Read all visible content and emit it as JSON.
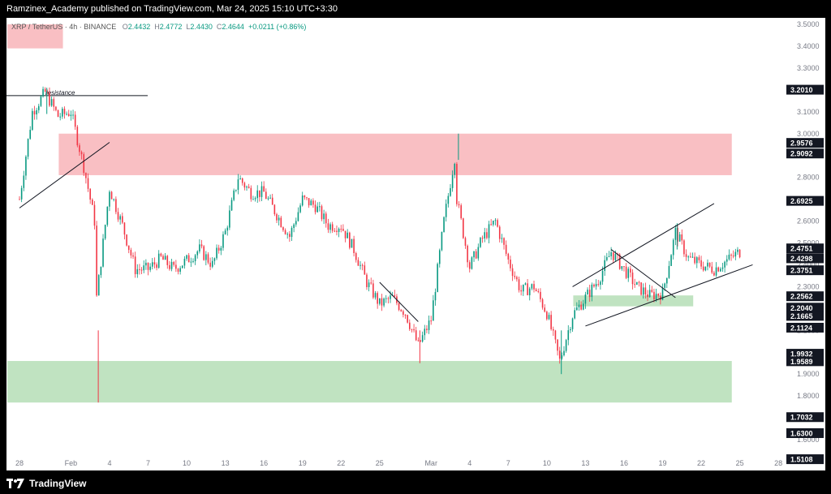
{
  "header": {
    "publisher_text": "Ramzinex_Academy published on TradingView.com, Mar 24, 2025 15:10 UTC+3:30"
  },
  "legend": {
    "symbol": "XRP / TetherUS · 4h · BINANCE",
    "o_label": "O",
    "o_value": "2.4432",
    "h_label": "H",
    "h_value": "2.4772",
    "l_label": "L",
    "l_value": "2.4430",
    "c_label": "C",
    "c_value": "2.4644",
    "change": "+0.0211 (+0.86%)"
  },
  "footer": {
    "brand": "TradingView"
  },
  "colors": {
    "up": "#089981",
    "down": "#f23645",
    "supply_zone": "#f8b4b9",
    "demand_zone": "#b5deb6",
    "background": "#ffffff",
    "chrome": "#000000"
  },
  "chart_data": {
    "type": "candlestick",
    "symbol": "XRP / TetherUS",
    "interval": "4h",
    "exchange": "BINANCE",
    "x_range": [
      "Jan 28",
      "Mar 28"
    ],
    "ylim": [
      1.5,
      3.5
    ],
    "y_ticks": [
      "3.5000",
      "3.4000",
      "3.3000",
      "3.2000",
      "3.1000",
      "3.0000",
      "2.9000",
      "2.8000",
      "2.7000",
      "2.6000",
      "2.5000",
      "2.4000",
      "2.3000",
      "2.2000",
      "2.1000",
      "2.0000",
      "1.9000",
      "1.8000",
      "1.7000",
      "1.6000",
      "1.5000"
    ],
    "x_ticks": [
      "28",
      "Feb",
      "4",
      "7",
      "10",
      "13",
      "16",
      "19",
      "22",
      "25",
      "Mar",
      "4",
      "7",
      "10",
      "13",
      "16",
      "19",
      "22",
      "25",
      "28"
    ],
    "price_labels": [
      "3.2010",
      "2.9576",
      "2.9092",
      "2.6925",
      "2.4751",
      "2.4298",
      "2.3751",
      "2.2562",
      "2.2040",
      "2.1665",
      "2.1124",
      "1.9932",
      "1.9589",
      "1.7032",
      "1.6300",
      "1.5108"
    ],
    "annotations": [
      {
        "text": "resistance",
        "price": 3.2
      }
    ],
    "zones": [
      {
        "type": "supply",
        "from": "Jan 28",
        "to": "Jan 31",
        "low": 3.39,
        "high": 3.5
      },
      {
        "type": "supply",
        "from": "Feb 1",
        "to": "Mar 24",
        "low": 2.81,
        "high": 3.0
      },
      {
        "type": "demand",
        "from": "Jan 28",
        "to": "Mar 24",
        "low": 1.77,
        "high": 1.96
      },
      {
        "type": "demand",
        "from": "Mar 13",
        "to": "Mar 21",
        "low": 2.21,
        "high": 2.26
      }
    ],
    "trendlines": [
      {
        "from": {
          "t": "Jan 28",
          "p": 2.66
        },
        "to": {
          "t": "Feb 4",
          "p": 2.96
        }
      },
      {
        "from": {
          "t": "Feb 25",
          "p": 2.32
        },
        "to": {
          "t": "Feb 28",
          "p": 2.14
        }
      },
      {
        "from": {
          "t": "Mar 12",
          "p": 2.3
        },
        "to": {
          "t": "Mar 23",
          "p": 2.68
        }
      },
      {
        "from": {
          "t": "Mar 13",
          "p": 2.12
        },
        "to": {
          "t": "Mar 26",
          "p": 2.4
        }
      },
      {
        "from": {
          "t": "Mar 15",
          "p": 2.47
        },
        "to": {
          "t": "Mar 20",
          "p": 2.25
        }
      }
    ],
    "path": [
      [
        "Jan 28",
        2.7
      ],
      [
        "Jan 29",
        3.1
      ],
      [
        "Jan 30",
        3.19
      ],
      [
        "Jan 31",
        3.08
      ],
      [
        "Feb 1",
        3.1
      ],
      [
        "Feb 2",
        2.85
      ],
      [
        "Feb 3",
        2.55
      ],
      [
        "Feb 3",
        2.25
      ],
      [
        "Feb 4",
        2.75
      ],
      [
        "Feb 5",
        2.58
      ],
      [
        "Feb 6",
        2.38
      ],
      [
        "Feb 7",
        2.38
      ],
      [
        "Feb 8",
        2.43
      ],
      [
        "Feb 9",
        2.38
      ],
      [
        "Feb 10",
        2.42
      ],
      [
        "Feb 11",
        2.47
      ],
      [
        "Feb 12",
        2.4
      ],
      [
        "Feb 13",
        2.55
      ],
      [
        "Feb 14",
        2.8
      ],
      [
        "Feb 15",
        2.73
      ],
      [
        "Feb 16",
        2.73
      ],
      [
        "Feb 17",
        2.63
      ],
      [
        "Feb 18",
        2.53
      ],
      [
        "Feb 19",
        2.7
      ],
      [
        "Feb 20",
        2.67
      ],
      [
        "Feb 21",
        2.58
      ],
      [
        "Feb 22",
        2.58
      ],
      [
        "Feb 23",
        2.47
      ],
      [
        "Feb 24",
        2.32
      ],
      [
        "Feb 25",
        2.22
      ],
      [
        "Feb 26",
        2.25
      ],
      [
        "Feb 27",
        2.18
      ],
      [
        "Feb 28",
        2.03
      ],
      [
        "Mar 1",
        2.15
      ],
      [
        "Mar 2",
        2.6
      ],
      [
        "Mar 3",
        2.95
      ],
      [
        "Mar 3",
        2.7
      ],
      [
        "Mar 4",
        2.39
      ],
      [
        "Mar 5",
        2.52
      ],
      [
        "Mar 6",
        2.6
      ],
      [
        "Mar 7",
        2.42
      ],
      [
        "Mar 8",
        2.28
      ],
      [
        "Mar 9",
        2.3
      ],
      [
        "Mar 10",
        2.18
      ],
      [
        "Mar 11",
        1.96
      ],
      [
        "Mar 12",
        2.17
      ],
      [
        "Mar 13",
        2.25
      ],
      [
        "Mar 14",
        2.33
      ],
      [
        "Mar 15",
        2.46
      ],
      [
        "Mar 16",
        2.38
      ],
      [
        "Mar 17",
        2.3
      ],
      [
        "Mar 18",
        2.26
      ],
      [
        "Mar 19",
        2.27
      ],
      [
        "Mar 20",
        2.55
      ],
      [
        "Mar 21",
        2.43
      ],
      [
        "Mar 22",
        2.4
      ],
      [
        "Mar 23",
        2.38
      ],
      [
        "Mar 24",
        2.42
      ],
      [
        "Mar 25",
        2.46
      ]
    ],
    "wicks": [
      {
        "t": "Feb 3",
        "low": 1.77
      },
      {
        "t": "Jan 30",
        "high": 3.21
      },
      {
        "t": "Mar 3",
        "high": 3.0
      },
      {
        "t": "Mar 11",
        "low": 1.9
      },
      {
        "t": "Feb 28",
        "low": 1.95
      },
      {
        "t": "Mar 20",
        "high": 2.59
      }
    ]
  }
}
